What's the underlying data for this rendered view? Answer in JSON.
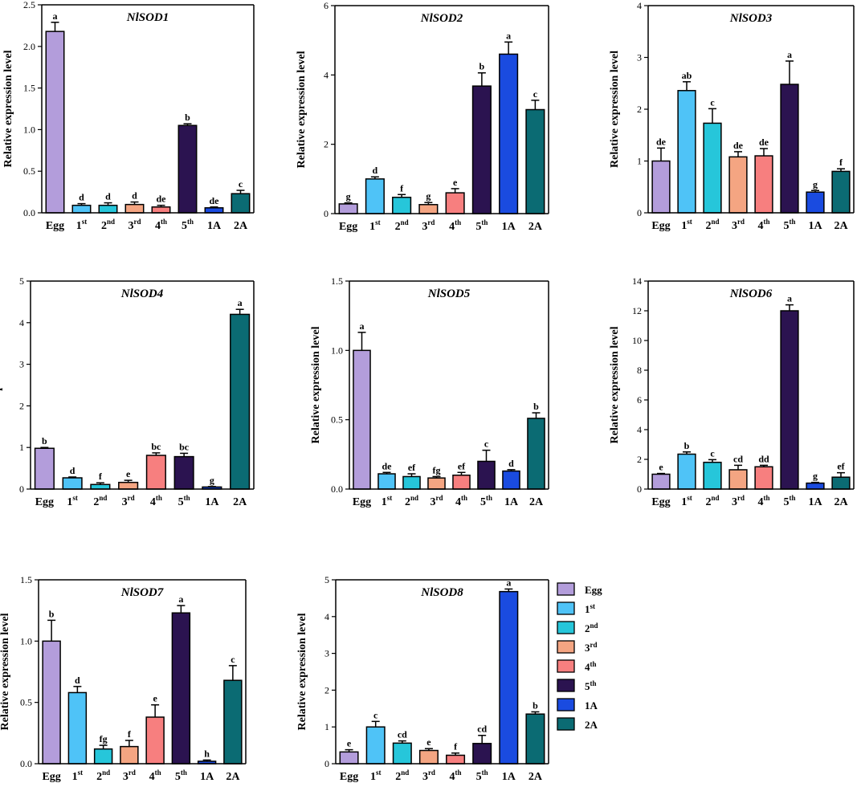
{
  "categories": [
    {
      "base": "Egg",
      "sup": ""
    },
    {
      "base": "1",
      "sup": "st"
    },
    {
      "base": "2",
      "sup": "nd"
    },
    {
      "base": "3",
      "sup": "rd"
    },
    {
      "base": "4",
      "sup": "th"
    },
    {
      "base": "5",
      "sup": "th"
    },
    {
      "base": "1A",
      "sup": ""
    },
    {
      "base": "2A",
      "sup": ""
    }
  ],
  "colors": [
    "#b39ddb",
    "#4fc3f7",
    "#26c6da",
    "#f4a582",
    "#f77f7f",
    "#2b1350",
    "#1a4be0",
    "#0b6b73"
  ],
  "chart_data": [
    {
      "type": "bar",
      "title": "NlSOD1",
      "ylabel": "Relative expression level",
      "ylim": [
        0,
        2.5
      ],
      "yticks": [
        "0.0",
        "0.5",
        "1.0",
        "1.5",
        "2.0",
        "2.5"
      ],
      "tick_values": [
        0,
        0.5,
        1,
        1.5,
        2,
        2.5
      ],
      "values": [
        2.18,
        0.09,
        0.09,
        0.1,
        0.07,
        1.05,
        0.06,
        0.23
      ],
      "errors": [
        0.11,
        0.02,
        0.03,
        0.03,
        0.02,
        0.02,
        0.01,
        0.04
      ],
      "letters": [
        "a",
        "d",
        "d",
        "d",
        "de",
        "b",
        "de",
        "c"
      ]
    },
    {
      "type": "bar",
      "title": "NlSOD2",
      "ylabel": "Relative expression level",
      "ylim": [
        0,
        6
      ],
      "yticks": [
        "0",
        "2",
        "4",
        "6"
      ],
      "tick_values": [
        0,
        2,
        4,
        6
      ],
      "values": [
        0.28,
        1.0,
        0.47,
        0.26,
        0.6,
        3.68,
        4.6,
        3.0
      ],
      "errors": [
        0.03,
        0.06,
        0.08,
        0.06,
        0.12,
        0.38,
        0.35,
        0.27
      ],
      "letters": [
        "g",
        "d",
        "f",
        "g",
        "e",
        "b",
        "a",
        "c"
      ]
    },
    {
      "type": "bar",
      "title": "NlSOD3",
      "ylabel": "Relative expression level",
      "ylim": [
        0,
        4
      ],
      "yticks": [
        "0",
        "1",
        "2",
        "3",
        "4"
      ],
      "tick_values": [
        0,
        1,
        2,
        3,
        4
      ],
      "values": [
        1.0,
        2.36,
        1.73,
        1.08,
        1.1,
        2.48,
        0.4,
        0.8
      ],
      "errors": [
        0.25,
        0.17,
        0.28,
        0.1,
        0.14,
        0.45,
        0.03,
        0.05
      ],
      "letters": [
        "de",
        "ab",
        "c",
        "de",
        "de",
        "a",
        "g",
        "f"
      ]
    },
    {
      "type": "bar",
      "title": "NlSOD4",
      "ylabel": "Relative expression level",
      "ylim": [
        0,
        5
      ],
      "yticks": [
        "0",
        "1",
        "2",
        "3",
        "4",
        "5"
      ],
      "tick_values": [
        0,
        1,
        2,
        3,
        4,
        5
      ],
      "values": [
        0.98,
        0.27,
        0.11,
        0.16,
        0.81,
        0.78,
        0.05,
        4.2
      ],
      "errors": [
        0.02,
        0.02,
        0.04,
        0.05,
        0.06,
        0.08,
        0.01,
        0.12
      ],
      "letters": [
        "b",
        "d",
        "f",
        "e",
        "bc",
        "bc",
        "g",
        "a"
      ]
    },
    {
      "type": "bar",
      "title": "NlSOD5",
      "ylabel": "Relative expression level",
      "ylim": [
        0,
        1.5
      ],
      "yticks": [
        "0.0",
        "0.5",
        "1.0",
        "1.5"
      ],
      "tick_values": [
        0,
        0.5,
        1,
        1.5
      ],
      "values": [
        1.0,
        0.11,
        0.09,
        0.08,
        0.1,
        0.2,
        0.13,
        0.51
      ],
      "errors": [
        0.13,
        0.01,
        0.02,
        0.01,
        0.02,
        0.08,
        0.01,
        0.04
      ],
      "letters": [
        "a",
        "de",
        "ef",
        "fg",
        "ef",
        "c",
        "d",
        "b"
      ]
    },
    {
      "type": "bar",
      "title": "NlSOD6",
      "ylabel": "Relative expression level",
      "ylim": [
        0,
        14
      ],
      "yticks": [
        "0",
        "2",
        "4",
        "6",
        "8",
        "10",
        "12",
        "14"
      ],
      "tick_values": [
        0,
        2,
        4,
        6,
        8,
        10,
        12,
        14
      ],
      "values": [
        1.0,
        2.35,
        1.8,
        1.3,
        1.5,
        12.0,
        0.4,
        0.8
      ],
      "errors": [
        0.05,
        0.15,
        0.18,
        0.3,
        0.1,
        0.4,
        0.05,
        0.3
      ],
      "letters": [
        "e",
        "b",
        "c",
        "cd",
        "dd",
        "a",
        "g",
        "ef"
      ]
    },
    {
      "type": "bar",
      "title": "NlSOD7",
      "ylabel": "Relative expression level",
      "ylim": [
        0,
        1.5
      ],
      "yticks": [
        "0.0",
        "0.5",
        "1.0",
        "1.5"
      ],
      "tick_values": [
        0,
        0.5,
        1,
        1.5
      ],
      "values": [
        1.0,
        0.58,
        0.12,
        0.14,
        0.38,
        1.23,
        0.02,
        0.68
      ],
      "errors": [
        0.17,
        0.05,
        0.03,
        0.05,
        0.1,
        0.06,
        0.01,
        0.12
      ],
      "letters": [
        "b",
        "d",
        "fg",
        "f",
        "e",
        "a",
        "h",
        "c"
      ]
    },
    {
      "type": "bar",
      "title": "NlSOD8",
      "ylabel": "Relative expression level",
      "ylim": [
        0,
        5
      ],
      "yticks": [
        "0",
        "1",
        "2",
        "3",
        "4",
        "5"
      ],
      "tick_values": [
        0,
        1,
        2,
        3,
        4,
        5
      ],
      "values": [
        0.32,
        1.0,
        0.56,
        0.36,
        0.23,
        0.55,
        4.68,
        1.35
      ],
      "errors": [
        0.06,
        0.15,
        0.06,
        0.05,
        0.06,
        0.22,
        0.07,
        0.06
      ],
      "letters": [
        "e",
        "c",
        "cd",
        "e",
        "f",
        "cd",
        "a",
        "b"
      ]
    }
  ]
}
